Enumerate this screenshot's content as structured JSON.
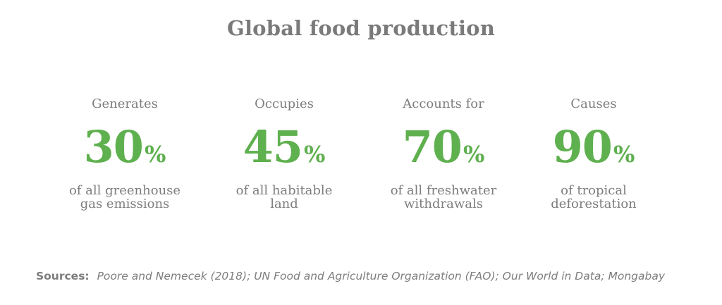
{
  "title": "Global food production",
  "stats": [
    {
      "lead": "Generates",
      "value": "30",
      "unit": "%",
      "desc": "of all greenhouse\ngas emissions"
    },
    {
      "lead": "Occupies",
      "value": "45",
      "unit": "%",
      "desc": "of all habitable\nland"
    },
    {
      "lead": "Accounts for",
      "value": "70",
      "unit": "%",
      "desc": "of all freshwater\nwithdrawals"
    },
    {
      "lead": "Causes",
      "value": "90",
      "unit": "%",
      "desc": "of tropical\ndeforestation"
    }
  ],
  "sources": {
    "label": "Sources:",
    "text": "Poore and Nemecek (2018); UN Food and Agriculture Organization (FAO); Our World in Data; Mongabay"
  },
  "colors": {
    "accent": "#5fb04f",
    "text": "#7d7d7d",
    "title": "#7a7a7a"
  }
}
